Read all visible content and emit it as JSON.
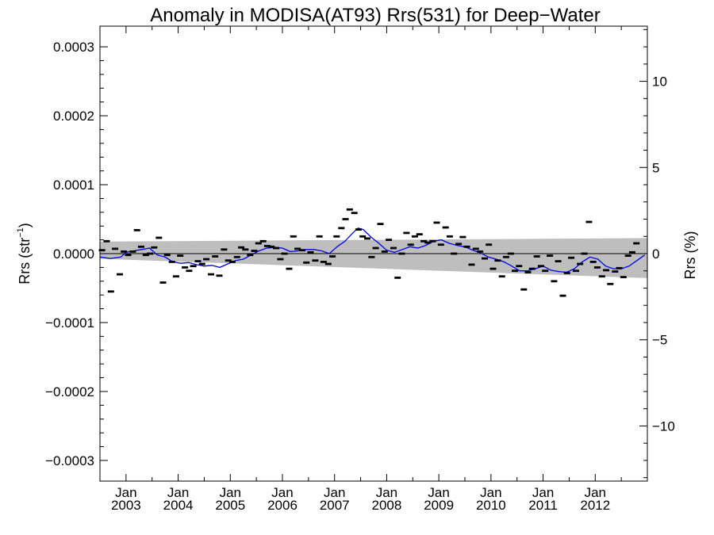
{
  "chart_data": {
    "type": "scatter",
    "title": "Anomaly in MODISA(AT93) Rrs(531) for Deep−Water",
    "ylabel_left_base": "Rrs (str",
    "ylabel_left_sup": "−1",
    "ylabel_left_tail": ")",
    "ylabel_right": "Rrs (%)",
    "xlim": [
      2002.5,
      2013.0
    ],
    "ylim": [
      -0.00033,
      0.00033
    ],
    "y2lim": [
      -13.2,
      13.2
    ],
    "grid": false,
    "x_ticks": [
      {
        "x": 2003.0,
        "month": "Jan",
        "year": "2003"
      },
      {
        "x": 2004.0,
        "month": "Jan",
        "year": "2004"
      },
      {
        "x": 2005.0,
        "month": "Jan",
        "year": "2005"
      },
      {
        "x": 2006.0,
        "month": "Jan",
        "year": "2006"
      },
      {
        "x": 2007.0,
        "month": "Jan",
        "year": "2007"
      },
      {
        "x": 2008.0,
        "month": "Jan",
        "year": "2008"
      },
      {
        "x": 2009.0,
        "month": "Jan",
        "year": "2009"
      },
      {
        "x": 2010.0,
        "month": "Jan",
        "year": "2010"
      },
      {
        "x": 2011.0,
        "month": "Jan",
        "year": "2011"
      },
      {
        "x": 2012.0,
        "month": "Jan",
        "year": "2012"
      }
    ],
    "y_ticks_left": [
      {
        "v": 0.0003,
        "label": "0.0003"
      },
      {
        "v": 0.0002,
        "label": "0.0002"
      },
      {
        "v": 0.0001,
        "label": "0.0001"
      },
      {
        "v": 0.0,
        "label": "0.0000"
      },
      {
        "v": -0.0001,
        "label": "−0.0001"
      },
      {
        "v": -0.0002,
        "label": "−0.0002"
      },
      {
        "v": -0.0003,
        "label": "−0.0003"
      }
    ],
    "y_ticks_right": [
      {
        "v": 10,
        "label": "10"
      },
      {
        "v": 5,
        "label": "5"
      },
      {
        "v": 0,
        "label": "0"
      },
      {
        "v": -5,
        "label": "−5"
      },
      {
        "v": -10,
        "label": "−10"
      }
    ],
    "band": {
      "x": [
        2002.5,
        2013.0
      ],
      "upper": [
        1.75e-05,
        2.25e-05
      ],
      "lower": [
        -7.5e-06,
        -3.55e-05
      ]
    },
    "points": [
      {
        "x": 2002.54,
        "y": 5e-06
      },
      {
        "x": 2002.63,
        "y": 1.8e-05
      },
      {
        "x": 2002.71,
        "y": -5.5e-05
      },
      {
        "x": 2002.79,
        "y": 7e-06
      },
      {
        "x": 2002.88,
        "y": -3e-05
      },
      {
        "x": 2002.96,
        "y": 3e-06
      },
      {
        "x": 2003.04,
        "y": -2e-06
      },
      {
        "x": 2003.13,
        "y": 3e-06
      },
      {
        "x": 2003.21,
        "y": 3.4e-05
      },
      {
        "x": 2003.29,
        "y": 1e-05
      },
      {
        "x": 2003.38,
        "y": -2e-06
      },
      {
        "x": 2003.46,
        "y": 0.0
      },
      {
        "x": 2003.54,
        "y": 9e-06
      },
      {
        "x": 2003.63,
        "y": 2.3e-05
      },
      {
        "x": 2003.71,
        "y": -4.2e-05
      },
      {
        "x": 2003.79,
        "y": -2e-06
      },
      {
        "x": 2003.88,
        "y": -1.2e-05
      },
      {
        "x": 2003.96,
        "y": -3.3e-05
      },
      {
        "x": 2004.04,
        "y": -3e-06
      },
      {
        "x": 2004.13,
        "y": -2e-05
      },
      {
        "x": 2004.21,
        "y": -2.5e-05
      },
      {
        "x": 2004.29,
        "y": -1.8e-05
      },
      {
        "x": 2004.38,
        "y": -1.1e-05
      },
      {
        "x": 2004.46,
        "y": -1.5e-05
      },
      {
        "x": 2004.54,
        "y": -8e-06
      },
      {
        "x": 2004.63,
        "y": -3e-05
      },
      {
        "x": 2004.71,
        "y": -4e-06
      },
      {
        "x": 2004.79,
        "y": -3.2e-05
      },
      {
        "x": 2004.88,
        "y": 6e-06
      },
      {
        "x": 2004.96,
        "y": -1e-05
      },
      {
        "x": 2005.04,
        "y": -1.2e-05
      },
      {
        "x": 2005.13,
        "y": -5e-06
      },
      {
        "x": 2005.21,
        "y": 9e-06
      },
      {
        "x": 2005.29,
        "y": 6e-06
      },
      {
        "x": 2005.38,
        "y": -2e-06
      },
      {
        "x": 2005.46,
        "y": 4e-06
      },
      {
        "x": 2005.54,
        "y": 1.5e-05
      },
      {
        "x": 2005.63,
        "y": 1.8e-05
      },
      {
        "x": 2005.71,
        "y": 1.1e-05
      },
      {
        "x": 2005.79,
        "y": 1e-05
      },
      {
        "x": 2005.88,
        "y": 8e-06
      },
      {
        "x": 2005.96,
        "y": -8e-06
      },
      {
        "x": 2006.04,
        "y": 0.0
      },
      {
        "x": 2006.13,
        "y": -2.2e-05
      },
      {
        "x": 2006.21,
        "y": 2.5e-05
      },
      {
        "x": 2006.29,
        "y": 7e-06
      },
      {
        "x": 2006.38,
        "y": 5e-06
      },
      {
        "x": 2006.46,
        "y": -1.3e-05
      },
      {
        "x": 2006.54,
        "y": 2e-06
      },
      {
        "x": 2006.63,
        "y": -1e-05
      },
      {
        "x": 2006.71,
        "y": 2.5e-05
      },
      {
        "x": 2006.79,
        "y": -1.2e-05
      },
      {
        "x": 2006.88,
        "y": -1.5e-05
      },
      {
        "x": 2006.96,
        "y": -4e-06
      },
      {
        "x": 2007.04,
        "y": 2.5e-05
      },
      {
        "x": 2007.13,
        "y": 3.7e-05
      },
      {
        "x": 2007.21,
        "y": 5e-05
      },
      {
        "x": 2007.29,
        "y": 6.4e-05
      },
      {
        "x": 2007.38,
        "y": 5.9e-05
      },
      {
        "x": 2007.46,
        "y": 3.5e-05
      },
      {
        "x": 2007.54,
        "y": 2.5e-05
      },
      {
        "x": 2007.63,
        "y": 2.2e-05
      },
      {
        "x": 2007.71,
        "y": -5e-06
      },
      {
        "x": 2007.79,
        "y": 8e-06
      },
      {
        "x": 2007.88,
        "y": 4.3e-05
      },
      {
        "x": 2007.96,
        "y": 3e-06
      },
      {
        "x": 2008.04,
        "y": 2e-05
      },
      {
        "x": 2008.13,
        "y": 8e-06
      },
      {
        "x": 2008.21,
        "y": -3.5e-05
      },
      {
        "x": 2008.29,
        "y": 0.0
      },
      {
        "x": 2008.38,
        "y": 3e-05
      },
      {
        "x": 2008.46,
        "y": 1.3e-05
      },
      {
        "x": 2008.54,
        "y": 2.5e-05
      },
      {
        "x": 2008.63,
        "y": 2.8e-05
      },
      {
        "x": 2008.71,
        "y": 1.8e-05
      },
      {
        "x": 2008.79,
        "y": 1.6e-05
      },
      {
        "x": 2008.88,
        "y": 1.8e-05
      },
      {
        "x": 2008.96,
        "y": 4.5e-05
      },
      {
        "x": 2009.04,
        "y": 1.3e-05
      },
      {
        "x": 2009.13,
        "y": 3.8e-05
      },
      {
        "x": 2009.21,
        "y": 2.5e-05
      },
      {
        "x": 2009.29,
        "y": 0.0
      },
      {
        "x": 2009.38,
        "y": 1.4e-05
      },
      {
        "x": 2009.46,
        "y": 2.4e-05
      },
      {
        "x": 2009.54,
        "y": 1e-05
      },
      {
        "x": 2009.63,
        "y": -1.6e-05
      },
      {
        "x": 2009.71,
        "y": 7e-06
      },
      {
        "x": 2009.79,
        "y": 3e-06
      },
      {
        "x": 2009.88,
        "y": -7e-06
      },
      {
        "x": 2009.96,
        "y": 1.3e-05
      },
      {
        "x": 2010.04,
        "y": -2.2e-05
      },
      {
        "x": 2010.13,
        "y": -1e-05
      },
      {
        "x": 2010.21,
        "y": -3.3e-05
      },
      {
        "x": 2010.29,
        "y": -5e-06
      },
      {
        "x": 2010.38,
        "y": 0.0
      },
      {
        "x": 2010.46,
        "y": -2.5e-05
      },
      {
        "x": 2010.54,
        "y": -1.8e-05
      },
      {
        "x": 2010.63,
        "y": -5.2e-05
      },
      {
        "x": 2010.71,
        "y": -2.7e-05
      },
      {
        "x": 2010.79,
        "y": -2.2e-05
      },
      {
        "x": 2010.88,
        "y": -4e-06
      },
      {
        "x": 2010.96,
        "y": -1.8e-05
      },
      {
        "x": 2011.04,
        "y": -2.5e-05
      },
      {
        "x": 2011.13,
        "y": -3e-06
      },
      {
        "x": 2011.21,
        "y": -4e-05
      },
      {
        "x": 2011.29,
        "y": -1.1e-05
      },
      {
        "x": 2011.38,
        "y": -6.1e-05
      },
      {
        "x": 2011.46,
        "y": -2.8e-05
      },
      {
        "x": 2011.54,
        "y": -6e-06
      },
      {
        "x": 2011.63,
        "y": -2.5e-05
      },
      {
        "x": 2011.71,
        "y": -1.5e-05
      },
      {
        "x": 2011.79,
        "y": 0.0
      },
      {
        "x": 2011.88,
        "y": 4.6e-05
      },
      {
        "x": 2011.96,
        "y": -1.2e-05
      },
      {
        "x": 2012.04,
        "y": -2e-05
      },
      {
        "x": 2012.13,
        "y": -3.3e-05
      },
      {
        "x": 2012.21,
        "y": -2.4e-05
      },
      {
        "x": 2012.29,
        "y": -4.4e-05
      },
      {
        "x": 2012.38,
        "y": -2.6e-05
      },
      {
        "x": 2012.46,
        "y": -2.1e-05
      },
      {
        "x": 2012.54,
        "y": -3.4e-05
      },
      {
        "x": 2012.63,
        "y": -3e-06
      },
      {
        "x": 2012.71,
        "y": 2e-06
      },
      {
        "x": 2012.79,
        "y": 1.5e-05
      }
    ],
    "trend": {
      "x": [
        2002.5,
        2002.7,
        2002.9,
        2003.0,
        2003.15,
        2003.3,
        2003.45,
        2003.6,
        2003.75,
        2003.9,
        2004.05,
        2004.2,
        2004.35,
        2004.5,
        2004.65,
        2004.8,
        2004.95,
        2005.1,
        2005.25,
        2005.4,
        2005.55,
        2005.7,
        2005.85,
        2006.0,
        2006.15,
        2006.3,
        2006.45,
        2006.6,
        2006.75,
        2006.9,
        2007.05,
        2007.2,
        2007.35,
        2007.45,
        2007.55,
        2007.7,
        2007.85,
        2008.0,
        2008.15,
        2008.3,
        2008.45,
        2008.6,
        2008.75,
        2008.9,
        2009.05,
        2009.2,
        2009.35,
        2009.5,
        2009.65,
        2009.8,
        2009.95,
        2010.1,
        2010.25,
        2010.4,
        2010.55,
        2010.7,
        2010.85,
        2011.0,
        2011.15,
        2011.3,
        2011.45,
        2011.6,
        2011.75,
        2011.9,
        2012.05,
        2012.2,
        2012.35,
        2012.5,
        2012.65,
        2012.8,
        2012.95
      ],
      "y": [
        -5e-06,
        -7e-06,
        -5e-06,
        2e-06,
        4e-06,
        6e-06,
        8e-06,
        -2e-06,
        -5e-06,
        -1.2e-05,
        -1.4e-05,
        -1.3e-05,
        -1.6e-05,
        -1.8e-05,
        -1.7e-05,
        -2e-05,
        -1.5e-05,
        -1e-05,
        -8e-06,
        -2e-06,
        4e-06,
        8e-06,
        9e-06,
        8e-06,
        3e-06,
        4e-06,
        6e-06,
        6e-06,
        4e-06,
        0.0,
        1e-05,
        1.8e-05,
        3e-05,
        3.7e-05,
        3.5e-05,
        2.4e-05,
        1.5e-05,
        5e-06,
        2e-06,
        6e-06,
        1e-05,
        8e-06,
        1.2e-05,
        1.8e-05,
        2e-05,
        1.5e-05,
        1.2e-05,
        1e-05,
        5e-06,
        1e-06,
        -5e-06,
        -8e-06,
        -1.2e-05,
        -1.8e-05,
        -2.5e-05,
        -2.5e-05,
        -2.2e-05,
        -1.8e-05,
        -2.4e-05,
        -2.6e-05,
        -2.7e-05,
        -2.2e-05,
        -1.2e-05,
        -5e-06,
        -8e-06,
        -1.8e-05,
        -2.2e-05,
        -2.2e-05,
        -1.8e-05,
        -1e-05,
        -2e-06
      ]
    },
    "colors": {
      "band": "#bebebe",
      "trend": "#0000ee",
      "points": "#000000",
      "axis": "#000000"
    }
  }
}
